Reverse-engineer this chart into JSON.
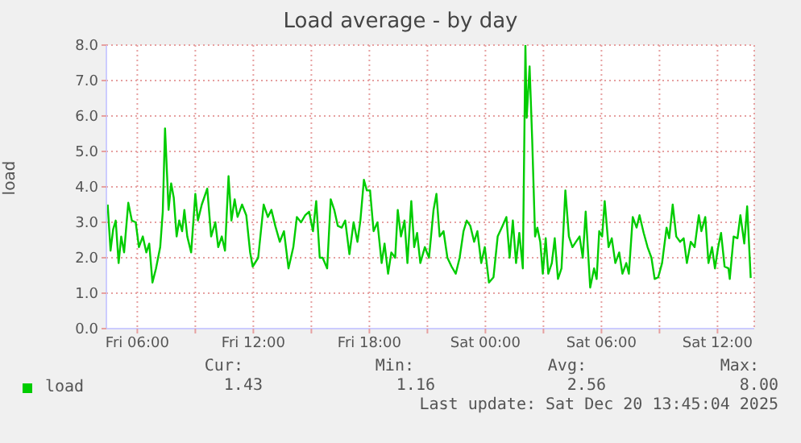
{
  "chart_data": {
    "type": "line",
    "title": "Load average - by day",
    "ylabel": "load",
    "xlim": [
      "2025-12-19T04:24",
      "2025-12-20T13:54"
    ],
    "xticks": [
      {
        "value": "2025-12-19T06:00",
        "label": "Fri 06:00"
      },
      {
        "value": "2025-12-19T09:00",
        "label": null
      },
      {
        "value": "2025-12-19T12:00",
        "label": "Fri 12:00"
      },
      {
        "value": "2025-12-19T15:00",
        "label": null
      },
      {
        "value": "2025-12-19T18:00",
        "label": "Fri 18:00"
      },
      {
        "value": "2025-12-19T21:00",
        "label": null
      },
      {
        "value": "2025-12-20T00:00",
        "label": "Sat 00:00"
      },
      {
        "value": "2025-12-20T03:00",
        "label": null
      },
      {
        "value": "2025-12-20T06:00",
        "label": "Sat 06:00"
      },
      {
        "value": "2025-12-20T09:00",
        "label": null
      },
      {
        "value": "2025-12-20T12:00",
        "label": "Sat 12:00"
      }
    ],
    "ylim": [
      0,
      8
    ],
    "yticks": [
      {
        "value": 0,
        "label": "0.0"
      },
      {
        "value": 1,
        "label": "1.0"
      },
      {
        "value": 2,
        "label": "2.0"
      },
      {
        "value": 3,
        "label": "3.0"
      },
      {
        "value": 4,
        "label": "4.0"
      },
      {
        "value": 5,
        "label": "5.0"
      },
      {
        "value": 6,
        "label": "6.0"
      },
      {
        "value": 7,
        "label": "7.0"
      },
      {
        "value": 8,
        "label": "8.0"
      }
    ],
    "grid": true,
    "legend": "bottom left",
    "marker": "none",
    "line_style": "solid",
    "x": [
      "2025-12-19T04:28",
      "2025-12-19T04:37",
      "2025-12-19T04:45",
      "2025-12-19T04:53",
      "2025-12-19T05:02",
      "2025-12-19T05:10",
      "2025-12-19T05:19",
      "2025-12-19T05:32",
      "2025-12-19T05:43",
      "2025-12-19T05:55",
      "2025-12-19T06:05",
      "2025-12-19T06:17",
      "2025-12-19T06:28",
      "2025-12-19T06:37",
      "2025-12-19T06:47",
      "2025-12-19T06:58",
      "2025-12-19T07:11",
      "2025-12-19T07:19",
      "2025-12-19T07:26",
      "2025-12-19T07:37",
      "2025-12-19T07:45",
      "2025-12-19T07:53",
      "2025-12-19T08:02",
      "2025-12-19T08:10",
      "2025-12-19T08:19",
      "2025-12-19T08:26",
      "2025-12-19T08:35",
      "2025-12-19T08:47",
      "2025-12-19T09:00",
      "2025-12-19T09:08",
      "2025-12-19T09:20",
      "2025-12-19T09:37",
      "2025-12-19T09:49",
      "2025-12-19T10:02",
      "2025-12-19T10:11",
      "2025-12-19T10:22",
      "2025-12-19T10:32",
      "2025-12-19T10:43",
      "2025-12-19T10:52",
      "2025-12-19T11:02",
      "2025-12-19T11:11",
      "2025-12-19T11:25",
      "2025-12-19T11:38",
      "2025-12-19T11:50",
      "2025-12-19T11:58",
      "2025-12-19T12:15",
      "2025-12-19T12:32",
      "2025-12-19T12:45",
      "2025-12-19T12:56",
      "2025-12-19T13:08",
      "2025-12-19T13:22",
      "2025-12-19T13:35",
      "2025-12-19T13:49",
      "2025-12-19T14:04",
      "2025-12-19T14:15",
      "2025-12-19T14:28",
      "2025-12-19T14:41",
      "2025-12-19T14:53",
      "2025-12-19T15:05",
      "2025-12-19T15:15",
      "2025-12-19T15:26",
      "2025-12-19T15:35",
      "2025-12-19T15:49",
      "2025-12-19T16:00",
      "2025-12-19T16:11",
      "2025-12-19T16:22",
      "2025-12-19T16:34",
      "2025-12-19T16:45",
      "2025-12-19T16:58",
      "2025-12-19T17:11",
      "2025-12-19T17:23",
      "2025-12-19T17:32",
      "2025-12-19T17:43",
      "2025-12-19T17:52",
      "2025-12-19T18:02",
      "2025-12-19T18:13",
      "2025-12-19T18:25",
      "2025-12-19T18:38",
      "2025-12-19T18:47",
      "2025-12-19T18:58",
      "2025-12-19T19:08",
      "2025-12-19T19:20",
      "2025-12-19T19:28",
      "2025-12-19T19:38",
      "2025-12-19T19:49",
      "2025-12-19T19:58",
      "2025-12-19T20:10",
      "2025-12-19T20:19",
      "2025-12-19T20:28",
      "2025-12-19T20:38",
      "2025-12-19T20:52",
      "2025-12-19T21:05",
      "2025-12-19T21:19",
      "2025-12-19T21:28",
      "2025-12-19T21:38",
      "2025-12-19T21:50",
      "2025-12-19T22:02",
      "2025-12-19T22:15",
      "2025-12-19T22:28",
      "2025-12-19T22:40",
      "2025-12-19T22:52",
      "2025-12-19T23:02",
      "2025-12-19T23:13",
      "2025-12-19T23:25",
      "2025-12-19T23:35",
      "2025-12-19T23:47",
      "2025-12-19T23:58",
      "2025-12-20T00:11",
      "2025-12-20T00:25",
      "2025-12-20T00:38",
      "2025-12-20T00:53",
      "2025-12-20T01:05",
      "2025-12-20T01:15",
      "2025-12-20T01:25",
      "2025-12-20T01:35",
      "2025-12-20T01:45",
      "2025-12-20T01:56",
      "2025-12-20T02:04",
      "2025-12-20T02:08",
      "2025-12-20T02:17",
      "2025-12-20T02:25",
      "2025-12-20T02:34",
      "2025-12-20T02:41",
      "2025-12-20T02:50",
      "2025-12-20T02:58",
      "2025-12-20T03:07",
      "2025-12-20T03:15",
      "2025-12-20T03:26",
      "2025-12-20T03:35",
      "2025-12-20T03:45",
      "2025-12-20T03:56",
      "2025-12-20T04:08",
      "2025-12-20T04:19",
      "2025-12-20T04:30",
      "2025-12-20T04:41",
      "2025-12-20T04:52",
      "2025-12-20T05:02",
      "2025-12-20T05:11",
      "2025-12-20T05:25",
      "2025-12-20T05:37",
      "2025-12-20T05:45",
      "2025-12-20T05:53",
      "2025-12-20T06:02",
      "2025-12-20T06:10",
      "2025-12-20T06:22",
      "2025-12-20T06:32",
      "2025-12-20T06:43",
      "2025-12-20T06:55",
      "2025-12-20T07:05",
      "2025-12-20T07:17",
      "2025-12-20T07:25",
      "2025-12-20T07:37",
      "2025-12-20T07:49",
      "2025-12-20T07:58",
      "2025-12-20T08:11",
      "2025-12-20T08:23",
      "2025-12-20T08:35",
      "2025-12-20T08:45",
      "2025-12-20T08:56",
      "2025-12-20T09:08",
      "2025-12-20T09:22",
      "2025-12-20T09:30",
      "2025-12-20T09:41",
      "2025-12-20T09:52",
      "2025-12-20T10:04",
      "2025-12-20T10:15",
      "2025-12-20T10:25",
      "2025-12-20T10:37",
      "2025-12-20T10:49",
      "2025-12-20T11:02",
      "2025-12-20T11:10",
      "2025-12-20T11:22",
      "2025-12-20T11:32",
      "2025-12-20T11:43",
      "2025-12-20T11:52",
      "2025-12-20T12:02",
      "2025-12-20T12:11",
      "2025-12-20T12:22",
      "2025-12-20T12:34",
      "2025-12-20T12:38",
      "2025-12-20T12:50",
      "2025-12-20T13:02",
      "2025-12-20T13:11",
      "2025-12-20T13:23",
      "2025-12-20T13:32",
      "2025-12-20T13:43"
    ],
    "series": [
      {
        "name": "load",
        "color": "#00cc00",
        "values": [
          3.5,
          2.2,
          2.8,
          3.05,
          1.85,
          2.6,
          2.15,
          3.55,
          3.05,
          3.0,
          2.3,
          2.6,
          2.15,
          2.4,
          1.3,
          1.7,
          2.3,
          3.3,
          5.65,
          3.35,
          4.1,
          3.7,
          2.6,
          3.05,
          2.75,
          3.35,
          2.6,
          2.15,
          3.8,
          3.05,
          3.5,
          3.95,
          2.6,
          3.0,
          2.3,
          2.6,
          2.2,
          4.3,
          3.05,
          3.65,
          3.15,
          3.5,
          3.2,
          2.15,
          1.75,
          2.0,
          3.5,
          3.15,
          3.35,
          2.9,
          2.45,
          2.75,
          1.7,
          2.3,
          3.15,
          3.0,
          3.2,
          3.3,
          2.75,
          3.6,
          2.0,
          2.0,
          1.7,
          3.65,
          3.35,
          2.9,
          2.85,
          3.05,
          2.1,
          3.0,
          2.45,
          3.05,
          4.2,
          3.9,
          3.9,
          2.75,
          3.0,
          1.85,
          2.4,
          1.55,
          2.15,
          2.0,
          3.35,
          2.6,
          3.05,
          1.85,
          3.6,
          2.3,
          2.7,
          1.85,
          2.3,
          2.0,
          3.35,
          3.8,
          2.6,
          2.75,
          2.0,
          1.75,
          1.55,
          2.0,
          2.75,
          3.05,
          2.9,
          2.45,
          2.75,
          1.85,
          2.3,
          1.3,
          1.45,
          2.6,
          2.9,
          3.15,
          2.0,
          3.05,
          1.85,
          2.7,
          1.7,
          8.0,
          5.95,
          7.4,
          5.35,
          2.6,
          2.85,
          2.45,
          1.55,
          2.55,
          1.55,
          1.85,
          2.55,
          1.4,
          1.7,
          3.9,
          2.6,
          2.3,
          2.45,
          2.6,
          2.0,
          3.3,
          1.16,
          1.7,
          1.4,
          2.75,
          2.6,
          3.6,
          2.3,
          2.55,
          1.85,
          2.15,
          1.55,
          1.85,
          1.55,
          3.15,
          2.85,
          3.2,
          2.7,
          2.3,
          2.0,
          1.4,
          1.45,
          1.85,
          2.85,
          2.55,
          3.5,
          2.6,
          2.45,
          2.55,
          1.85,
          2.45,
          2.3,
          3.2,
          2.75,
          3.15,
          1.85,
          2.3,
          1.7,
          2.3,
          2.7,
          1.75,
          1.7,
          1.4,
          2.6,
          2.55,
          3.2,
          2.4,
          3.45,
          1.43
        ]
      }
    ],
    "annotations": [
      "Cur:",
      "Min:",
      "Avg:",
      "Max:",
      "1.43",
      "1.16",
      "2.56",
      "8.00",
      "Last update: Sat Dec 20 13:45:04 2025"
    ]
  }
}
